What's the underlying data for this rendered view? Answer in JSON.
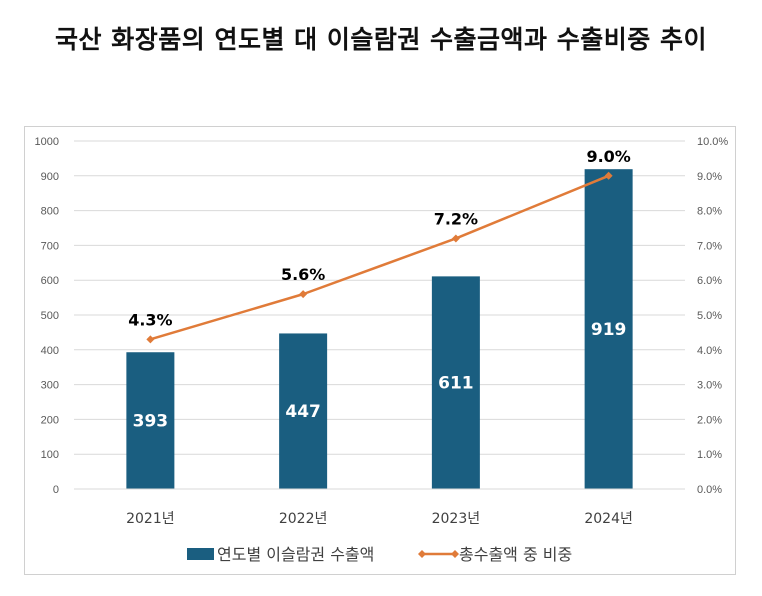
{
  "chart_data": {
    "type": "bar+line",
    "title": "국산 화장품의 연도별 대 이슬람권 수출금액과 수출비중 추이",
    "categories": [
      "2021년",
      "2022년",
      "2023년",
      "2024년"
    ],
    "series": [
      {
        "name": "연도별 이슬람권 수출액",
        "type": "bar",
        "axis": "left",
        "color": "#1a5e80",
        "values": [
          393,
          447,
          611,
          919
        ],
        "labels": [
          "393",
          "447",
          "611",
          "919"
        ]
      },
      {
        "name": "총수출액 중 비중",
        "type": "line",
        "axis": "right",
        "color": "#e07b39",
        "marker": "diamond",
        "values": [
          4.3,
          5.6,
          7.2,
          9.0
        ],
        "labels": [
          "4.3%",
          "5.6%",
          "7.2%",
          "9.0%"
        ]
      }
    ],
    "y_left": {
      "ylim": [
        0,
        1000
      ],
      "ticks": [
        "0",
        "100",
        "200",
        "300",
        "400",
        "500",
        "600",
        "700",
        "800",
        "900",
        "1000"
      ]
    },
    "y_right": {
      "ylim": [
        0,
        10
      ],
      "ticks": [
        "0.0%",
        "1.0%",
        "2.0%",
        "3.0%",
        "4.0%",
        "5.0%",
        "6.0%",
        "7.0%",
        "8.0%",
        "9.0%",
        "10.0%"
      ]
    },
    "xlabel": "",
    "ylabel": "",
    "grid": true,
    "legend": "bottom"
  }
}
